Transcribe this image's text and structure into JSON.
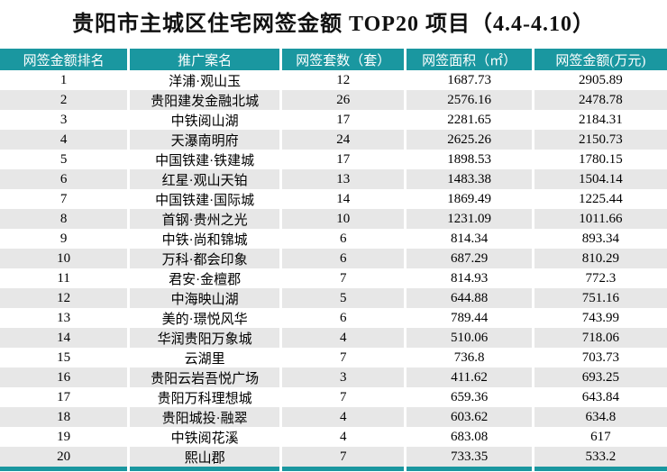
{
  "title": "贵阳市主城区住宅网签金额 TOP20 项目（4.4-4.10）",
  "chart_data": {
    "type": "table",
    "title": "贵阳市主城区住宅网签金额 TOP20 项目（4.4-4.10）",
    "columns": [
      "网签金额排名",
      "推广案名",
      "网签套数（套）",
      "网签面积（㎡）",
      "网签金额(万元)"
    ],
    "rows": [
      [
        "1",
        "洋浦·观山玉",
        "12",
        "1687.73",
        "2905.89"
      ],
      [
        "2",
        "贵阳建发金融北城",
        "26",
        "2576.16",
        "2478.78"
      ],
      [
        "3",
        "中铁阅山湖",
        "17",
        "2281.65",
        "2184.31"
      ],
      [
        "4",
        "天瀑南明府",
        "24",
        "2625.26",
        "2150.73"
      ],
      [
        "5",
        "中国铁建·铁建城",
        "17",
        "1898.53",
        "1780.15"
      ],
      [
        "6",
        "红星·观山天铂",
        "13",
        "1483.38",
        "1504.14"
      ],
      [
        "7",
        "中国铁建·国际城",
        "14",
        "1869.49",
        "1225.44"
      ],
      [
        "8",
        "首钢·贵州之光",
        "10",
        "1231.09",
        "1011.66"
      ],
      [
        "9",
        "中铁·尚和锦城",
        "6",
        "814.34",
        "893.34"
      ],
      [
        "10",
        "万科·都会印象",
        "6",
        "687.29",
        "810.29"
      ],
      [
        "11",
        "君安·金檀郡",
        "7",
        "814.93",
        "772.3"
      ],
      [
        "12",
        "中海映山湖",
        "5",
        "644.88",
        "751.16"
      ],
      [
        "13",
        "美的·璟悦风华",
        "6",
        "789.44",
        "743.99"
      ],
      [
        "14",
        "华润贵阳万象城",
        "4",
        "510.06",
        "718.06"
      ],
      [
        "15",
        "云湖里",
        "7",
        "736.8",
        "703.73"
      ],
      [
        "16",
        "贵阳云岩吾悦广场",
        "3",
        "411.62",
        "693.25"
      ],
      [
        "17",
        "贵阳万科理想城",
        "7",
        "659.36",
        "643.84"
      ],
      [
        "18",
        "贵阳城投·融翠",
        "4",
        "603.62",
        "634.8"
      ],
      [
        "19",
        "中铁阅花溪",
        "4",
        "683.08",
        "617"
      ],
      [
        "20",
        "熙山郡",
        "7",
        "733.35",
        "533.2"
      ]
    ]
  },
  "colors": {
    "header_bg": "#1A97A0",
    "header_text": "#FFFFFF",
    "stripe_bg": "#E7E7E7",
    "body_text": "#000000",
    "bottom_bar": "#1A97A0"
  }
}
